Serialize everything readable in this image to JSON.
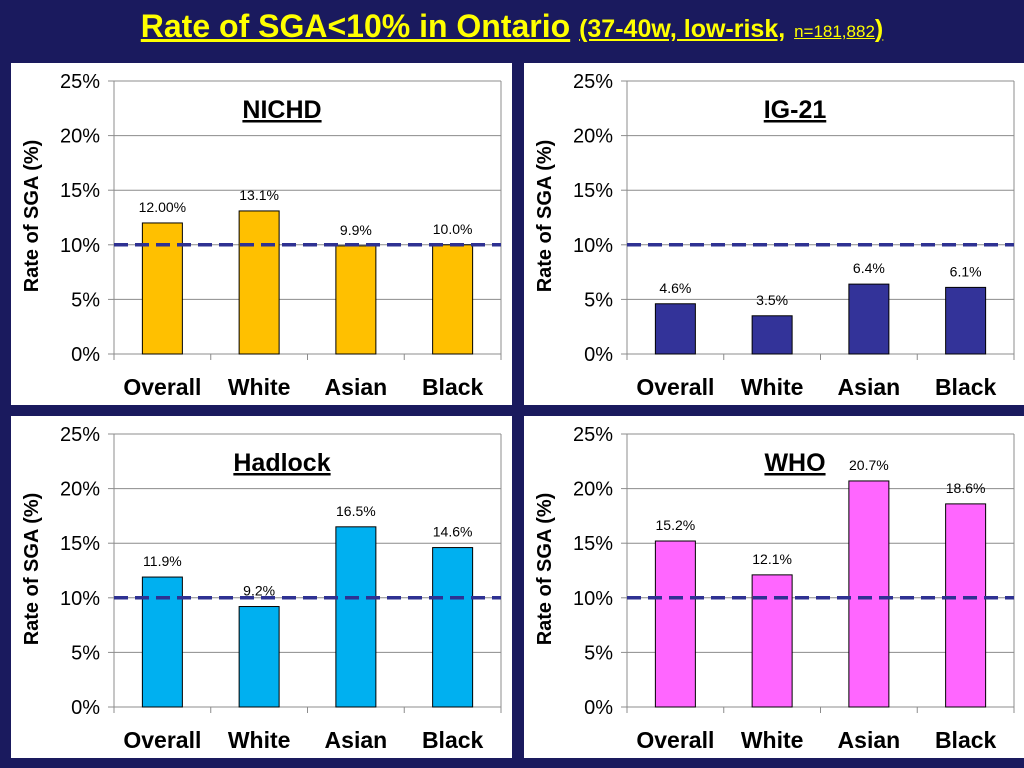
{
  "title": {
    "main": "Rate of SGA<10% in Ontario",
    "sub_open": "(37-40w, low-risk,",
    "n_label": "n=181,882",
    "sub_close": ")"
  },
  "colors": {
    "background": "#1a1a5e",
    "title": "#ffff00",
    "reference_line": "#2e3192",
    "nichd": "#ffc000",
    "ig21": "#333399",
    "hadlock": "#00b0f0",
    "who": "#ff66ff"
  },
  "chart_data": [
    {
      "type": "bar",
      "title": "NICHD",
      "ylabel": "Rate of SGA (%)",
      "xlabel": "",
      "categories": [
        "Overall",
        "White",
        "Asian",
        "Black"
      ],
      "values": [
        12.0,
        13.1,
        9.9,
        10.0
      ],
      "value_labels": [
        "12.00%",
        "13.1%",
        "9.9%",
        "10.0%"
      ],
      "ylim": [
        0,
        25
      ],
      "yticks": [
        0,
        5,
        10,
        15,
        20,
        25
      ],
      "ytick_labels": [
        "0%",
        "5%",
        "10%",
        "15%",
        "20%",
        "25%"
      ],
      "reference_line": 10,
      "color": "#ffc000",
      "grid": true
    },
    {
      "type": "bar",
      "title": "IG-21",
      "ylabel": "Rate of SGA (%)",
      "xlabel": "",
      "categories": [
        "Overall",
        "White",
        "Asian",
        "Black"
      ],
      "values": [
        4.6,
        3.5,
        6.4,
        6.1
      ],
      "value_labels": [
        "4.6%",
        "3.5%",
        "6.4%",
        "6.1%"
      ],
      "ylim": [
        0,
        25
      ],
      "yticks": [
        0,
        5,
        10,
        15,
        20,
        25
      ],
      "ytick_labels": [
        "0%",
        "5%",
        "10%",
        "15%",
        "20%",
        "25%"
      ],
      "reference_line": 10,
      "color": "#333399",
      "grid": true
    },
    {
      "type": "bar",
      "title": "Hadlock",
      "ylabel": "Rate of SGA (%)",
      "xlabel": "",
      "categories": [
        "Overall",
        "White",
        "Asian",
        "Black"
      ],
      "values": [
        11.9,
        9.2,
        16.5,
        14.6
      ],
      "value_labels": [
        "11.9%",
        "9.2%",
        "16.5%",
        "14.6%"
      ],
      "ylim": [
        0,
        25
      ],
      "yticks": [
        0,
        5,
        10,
        15,
        20,
        25
      ],
      "ytick_labels": [
        "0%",
        "5%",
        "10%",
        "15%",
        "20%",
        "25%"
      ],
      "reference_line": 10,
      "color": "#00b0f0",
      "grid": true
    },
    {
      "type": "bar",
      "title": "WHO",
      "ylabel": "Rate of SGA (%)",
      "xlabel": "",
      "categories": [
        "Overall",
        "White",
        "Asian",
        "Black"
      ],
      "values": [
        15.2,
        12.1,
        20.7,
        18.6
      ],
      "value_labels": [
        "15.2%",
        "12.1%",
        "20.7%",
        "18.6%"
      ],
      "ylim": [
        0,
        25
      ],
      "yticks": [
        0,
        5,
        10,
        15,
        20,
        25
      ],
      "ytick_labels": [
        "0%",
        "5%",
        "10%",
        "15%",
        "20%",
        "25%"
      ],
      "reference_line": 10,
      "color": "#ff66ff",
      "grid": true
    }
  ]
}
